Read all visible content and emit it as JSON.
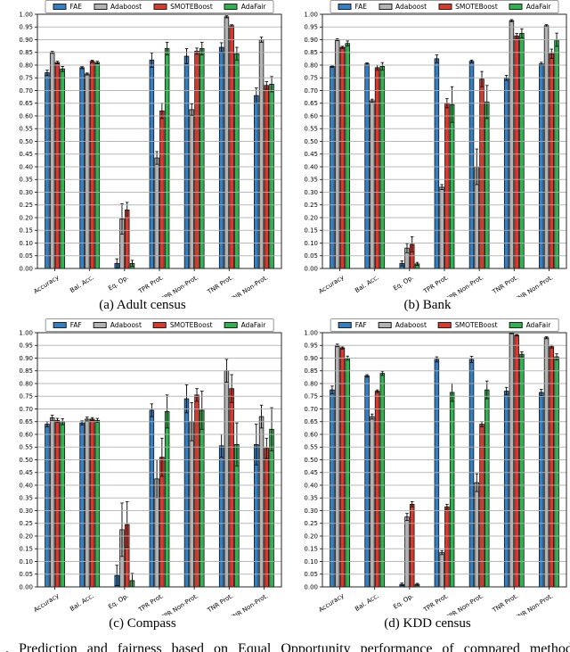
{
  "figure_caption_fragment": ". Prediction and fairness based on Equal Opportunity performance of compared methods",
  "style": {
    "background": "#ffffff",
    "grid_color": "#b0b0b0",
    "spine_color": "#262626",
    "bar_edge_color": "#111111",
    "error_bar_color": "#000000",
    "series_colors": {
      "blue": "#337fc4",
      "gray": "#b3b3b3",
      "red": "#d9392d",
      "green": "#2eb34f"
    }
  },
  "axis": {
    "ymin": 0.0,
    "ymax": 1.0,
    "ytick_step": 0.05,
    "grid": true
  },
  "chart_data": [
    {
      "type": "bar",
      "caption": "(a) Adult census",
      "legend_position": "top",
      "ylim": [
        0.0,
        1.0
      ],
      "categories": [
        "Accuracy",
        "Bal. Acc.",
        "Eq. Op.",
        "TPR Prot.",
        "TPR Non-Prot.",
        "TNR Prot.",
        "TNR Non-Prot."
      ],
      "series": [
        {
          "name": "FAE",
          "color": "#337fc4",
          "values": [
            0.77,
            0.79,
            0.02,
            0.82,
            0.835,
            0.87,
            0.68
          ],
          "errors": [
            0.01,
            0.004,
            0.018,
            0.028,
            0.03,
            0.018,
            0.03
          ]
        },
        {
          "name": "Adaboost",
          "color": "#b3b3b3",
          "values": [
            0.85,
            0.765,
            0.195,
            0.435,
            0.625,
            0.99,
            0.9
          ],
          "errors": [
            0.004,
            0.004,
            0.06,
            0.025,
            0.022,
            0.004,
            0.01
          ]
        },
        {
          "name": "SMOTEBoost",
          "color": "#d9392d",
          "values": [
            0.81,
            0.815,
            0.23,
            0.62,
            0.855,
            0.955,
            0.72
          ],
          "errors": [
            0.005,
            0.004,
            0.03,
            0.03,
            0.012,
            0.004,
            0.015
          ]
        },
        {
          "name": "AdaFair",
          "color": "#2eb34f",
          "values": [
            0.785,
            0.81,
            0.02,
            0.865,
            0.865,
            0.845,
            0.725
          ],
          "errors": [
            0.01,
            0.005,
            0.012,
            0.025,
            0.025,
            0.025,
            0.03
          ]
        }
      ]
    },
    {
      "type": "bar",
      "caption": "(b) Bank",
      "legend_position": "top",
      "ylim": [
        0.0,
        1.0
      ],
      "categories": [
        "Accuracy",
        "Bal. Acc.",
        "Eq. Op.",
        "TPR Prot.",
        "TPR Non-Prot.",
        "TNR Prot.",
        "TNR Non-Prot."
      ],
      "series": [
        {
          "name": "FAE",
          "color": "#337fc4",
          "values": [
            0.795,
            0.805,
            0.02,
            0.825,
            0.815,
            0.75,
            0.805
          ],
          "errors": [
            0.004,
            0.004,
            0.01,
            0.015,
            0.005,
            0.01,
            0.006
          ]
        },
        {
          "name": "Adaboost",
          "color": "#b3b3b3",
          "values": [
            0.9,
            0.66,
            0.08,
            0.32,
            0.4,
            0.975,
            0.955
          ],
          "errors": [
            0.004,
            0.006,
            0.018,
            0.01,
            0.07,
            0.004,
            0.004
          ]
        },
        {
          "name": "SMOTEBoost",
          "color": "#d9392d",
          "values": [
            0.87,
            0.79,
            0.095,
            0.65,
            0.745,
            0.915,
            0.845
          ],
          "errors": [
            0.004,
            0.01,
            0.03,
            0.018,
            0.03,
            0.01,
            0.018
          ]
        },
        {
          "name": "AdaFair",
          "color": "#2eb34f",
          "values": [
            0.885,
            0.795,
            0.018,
            0.645,
            0.655,
            0.925,
            0.9
          ],
          "errors": [
            0.01,
            0.015,
            0.006,
            0.07,
            0.065,
            0.018,
            0.026
          ]
        }
      ]
    },
    {
      "type": "bar",
      "caption": "(c) Compass",
      "legend_position": "top",
      "ylim": [
        0.0,
        1.0
      ],
      "categories": [
        "Accuracy",
        "Bal. Acc.",
        "Eq. Op.",
        "TPR Prot.",
        "TPR Non-Prot.",
        "TNR Prot.",
        "TNR Non-Prot."
      ],
      "series": [
        {
          "name": "FAF",
          "color": "#337fc4",
          "values": [
            0.64,
            0.645,
            0.045,
            0.695,
            0.74,
            0.555,
            0.56
          ],
          "errors": [
            0.01,
            0.008,
            0.04,
            0.025,
            0.055,
            0.045,
            0.08
          ]
        },
        {
          "name": "Adaboost",
          "color": "#b3b3b3",
          "values": [
            0.665,
            0.66,
            0.225,
            0.425,
            0.65,
            0.85,
            0.67
          ],
          "errors": [
            0.01,
            0.008,
            0.105,
            0.075,
            0.075,
            0.045,
            0.045
          ]
        },
        {
          "name": "SMOTEBoost",
          "color": "#d9392d",
          "values": [
            0.655,
            0.66,
            0.245,
            0.51,
            0.755,
            0.78,
            0.545
          ],
          "errors": [
            0.008,
            0.006,
            0.09,
            0.075,
            0.025,
            0.055,
            0.04
          ]
        },
        {
          "name": "AdaFair",
          "color": "#2eb34f",
          "values": [
            0.65,
            0.655,
            0.025,
            0.69,
            0.695,
            0.56,
            0.62
          ],
          "errors": [
            0.012,
            0.008,
            0.028,
            0.065,
            0.075,
            0.085,
            0.085
          ]
        }
      ]
    },
    {
      "type": "bar",
      "caption": "(d) KDD census",
      "legend_position": "top",
      "ylim": [
        0.0,
        1.0
      ],
      "categories": [
        "Accuracy",
        "Bal. Acc.",
        "Eq. Op.",
        "TPR Prot.",
        "TPR Non-Prot.",
        "TNR Prot.",
        "TNR Non-Prot."
      ],
      "series": [
        {
          "name": "FAF",
          "color": "#337fc4",
          "values": [
            0.775,
            0.83,
            0.01,
            0.895,
            0.895,
            0.77,
            0.765
          ],
          "errors": [
            0.015,
            0.005,
            0.005,
            0.01,
            0.012,
            0.015,
            0.012
          ]
        },
        {
          "name": "Adaboost",
          "color": "#b3b3b3",
          "values": [
            0.95,
            0.67,
            0.275,
            0.135,
            0.41,
            0.998,
            0.98
          ],
          "errors": [
            0.005,
            0.01,
            0.014,
            0.008,
            0.035,
            0.002,
            0.004
          ]
        },
        {
          "name": "SMOTEBoost",
          "color": "#d9392d",
          "values": [
            0.94,
            0.77,
            0.325,
            0.315,
            0.64,
            0.99,
            0.945
          ],
          "errors": [
            0.004,
            0.005,
            0.01,
            0.01,
            0.01,
            0.003,
            0.005
          ]
        },
        {
          "name": "AdaFair",
          "color": "#2eb34f",
          "values": [
            0.9,
            0.84,
            0.01,
            0.765,
            0.775,
            0.915,
            0.905
          ],
          "errors": [
            0.008,
            0.008,
            0.004,
            0.035,
            0.035,
            0.01,
            0.012
          ]
        }
      ]
    }
  ]
}
